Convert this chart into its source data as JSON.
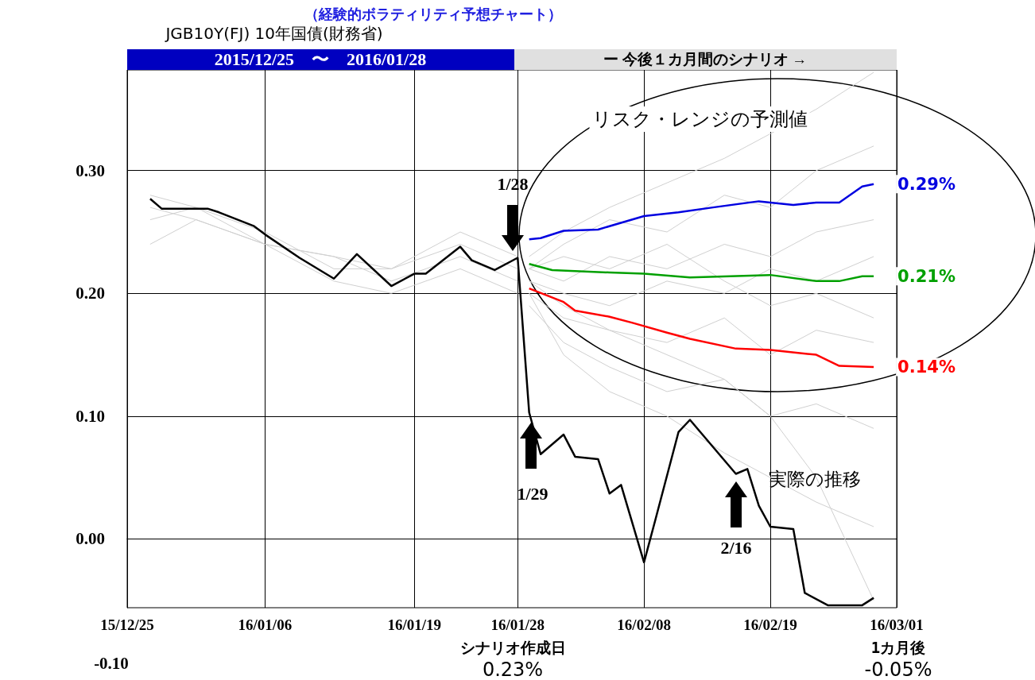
{
  "chart_data": {
    "type": "line",
    "title": "（経験的ボラティリティ予想チャート）",
    "subtitle": "JGB10Y(FJ) 10年国債(財務省)",
    "xlim": [
      "2015-12-25",
      "2016-03-01"
    ],
    "xticks": [
      {
        "value": "2015-12-25",
        "label": "15/12/25"
      },
      {
        "value": "2016-01-06",
        "label": "16/01/06"
      },
      {
        "value": "2016-01-19",
        "label": "16/01/19"
      },
      {
        "value": "2016-01-28",
        "label": "16/01/28"
      },
      {
        "value": "2016-02-08",
        "label": "16/02/08"
      },
      {
        "value": "2016-02-19",
        "label": "16/02/19"
      },
      {
        "value": "2016-03-01",
        "label": "16/03/01"
      }
    ],
    "ylim": [
      -0.056,
      0.382
    ],
    "yticks": [
      {
        "value": 0,
        "label": "0.00"
      },
      {
        "value": 0.1,
        "label": "0.10"
      },
      {
        "value": 0.2,
        "label": "0.20"
      },
      {
        "value": 0.3,
        "label": "0.30"
      }
    ],
    "grid": true,
    "marker": "none",
    "line_style": "solid",
    "series": [
      {
        "color": "#d0d0d0",
        "x": [
          "2015-12-27",
          "2015-12-31",
          "2016-01-06",
          "2016-01-12",
          "2016-01-17",
          "2016-01-23",
          "2016-01-28"
        ],
        "values": [
          0.26,
          0.27,
          0.25,
          0.22,
          0.22,
          0.24,
          0.22
        ]
      },
      {
        "color": "#d0d0d0",
        "x": [
          "2015-12-27",
          "2015-12-31",
          "2016-01-06",
          "2016-01-12",
          "2016-01-17",
          "2016-01-23",
          "2016-01-28"
        ],
        "values": [
          0.28,
          0.27,
          0.24,
          0.23,
          0.21,
          0.23,
          0.21
        ]
      },
      {
        "color": "#d0d0d0",
        "x": [
          "2015-12-27",
          "2015-12-31",
          "2016-01-06",
          "2016-01-12",
          "2016-01-17",
          "2016-01-23",
          "2016-01-28"
        ],
        "values": [
          0.24,
          0.26,
          0.24,
          0.21,
          0.2,
          0.22,
          0.2
        ]
      },
      {
        "color": "#d0d0d0",
        "x": [
          "2015-12-27",
          "2015-12-31",
          "2016-01-06",
          "2016-01-12",
          "2016-01-17",
          "2016-01-23",
          "2016-01-28"
        ],
        "values": [
          0.27,
          0.26,
          0.24,
          0.23,
          0.22,
          0.25,
          0.23
        ]
      },
      {
        "color": "#d0d0d0",
        "x": [
          "2016-01-29",
          "2016-02-01",
          "2016-02-05",
          "2016-02-10",
          "2016-02-15",
          "2016-02-19",
          "2016-02-23",
          "2016-02-28"
        ],
        "values": [
          0.23,
          0.25,
          0.27,
          0.29,
          0.31,
          0.33,
          0.35,
          0.38
        ]
      },
      {
        "color": "#d0d0d0",
        "x": [
          "2016-01-29",
          "2016-02-01",
          "2016-02-05",
          "2016-02-10",
          "2016-02-15",
          "2016-02-19",
          "2016-02-23",
          "2016-02-28"
        ],
        "values": [
          0.22,
          0.24,
          0.26,
          0.25,
          0.28,
          0.27,
          0.3,
          0.32
        ]
      },
      {
        "color": "#d0d0d0",
        "x": [
          "2016-01-29",
          "2016-02-01",
          "2016-02-05",
          "2016-02-10",
          "2016-02-15",
          "2016-02-19",
          "2016-02-23",
          "2016-02-28"
        ],
        "values": [
          0.22,
          0.21,
          0.23,
          0.22,
          0.24,
          0.23,
          0.25,
          0.26
        ]
      },
      {
        "color": "#d0d0d0",
        "x": [
          "2016-01-29",
          "2016-02-01",
          "2016-02-05",
          "2016-02-10",
          "2016-02-15",
          "2016-02-19",
          "2016-02-23",
          "2016-02-28"
        ],
        "values": [
          0.21,
          0.2,
          0.19,
          0.21,
          0.2,
          0.22,
          0.21,
          0.23
        ]
      },
      {
        "color": "#d0d0d0",
        "x": [
          "2016-01-29",
          "2016-02-01",
          "2016-02-05",
          "2016-02-10",
          "2016-02-15",
          "2016-02-19",
          "2016-02-23",
          "2016-02-28"
        ],
        "values": [
          0.2,
          0.18,
          0.17,
          0.16,
          0.18,
          0.15,
          0.17,
          0.16
        ]
      },
      {
        "color": "#d0d0d0",
        "x": [
          "2016-01-29",
          "2016-02-01",
          "2016-02-05",
          "2016-02-10",
          "2016-02-15",
          "2016-02-19",
          "2016-02-23",
          "2016-02-28"
        ],
        "values": [
          0.19,
          0.16,
          0.14,
          0.12,
          0.13,
          0.1,
          0.11,
          0.09
        ]
      },
      {
        "color": "#d0d0d0",
        "x": [
          "2016-01-29",
          "2016-02-01",
          "2016-02-05",
          "2016-02-10",
          "2016-02-15",
          "2016-02-19",
          "2016-02-23",
          "2016-02-28"
        ],
        "values": [
          0.2,
          0.15,
          0.12,
          0.1,
          0.07,
          0.05,
          0.03,
          0.01
        ]
      },
      {
        "color": "#d0d0d0",
        "x": [
          "2016-01-29",
          "2016-02-01",
          "2016-02-05",
          "2016-02-10",
          "2016-02-15",
          "2016-02-19",
          "2016-02-23",
          "2016-02-28"
        ],
        "values": [
          0.21,
          0.19,
          0.17,
          0.15,
          0.13,
          0.1,
          0.05,
          -0.05
        ]
      },
      {
        "color": "#d0d0d0",
        "x": [
          "2016-01-29",
          "2016-02-01",
          "2016-02-05",
          "2016-02-10",
          "2016-02-15",
          "2016-02-19",
          "2016-02-23",
          "2016-02-28"
        ],
        "values": [
          0.22,
          0.23,
          0.22,
          0.24,
          0.21,
          0.19,
          0.2,
          0.18
        ]
      },
      {
        "color": "#0000e0",
        "x": [
          "2016-01-29",
          "2016-01-30",
          "2016-02-01",
          "2016-02-04",
          "2016-02-08",
          "2016-02-11",
          "2016-02-14",
          "2016-02-18",
          "2016-02-21",
          "2016-02-23",
          "2016-02-25",
          "2016-02-27",
          "2016-02-28"
        ],
        "values": [
          0.244,
          0.245,
          0.251,
          0.252,
          0.263,
          0.266,
          0.27,
          0.275,
          0.272,
          0.274,
          0.274,
          0.287,
          0.289
        ],
        "value_labels": [
          null,
          null,
          null,
          null,
          null,
          null,
          null,
          null,
          null,
          null,
          null,
          null,
          "0.29%"
        ]
      },
      {
        "color": "#00a000",
        "x": [
          "2016-01-29",
          "2016-01-31",
          "2016-02-05",
          "2016-02-08",
          "2016-02-12",
          "2016-02-19",
          "2016-02-23",
          "2016-02-25",
          "2016-02-27",
          "2016-02-28"
        ],
        "values": [
          0.224,
          0.219,
          0.217,
          0.216,
          0.213,
          0.215,
          0.21,
          0.21,
          0.214,
          0.214
        ],
        "value_labels": [
          null,
          null,
          null,
          null,
          null,
          null,
          null,
          null,
          null,
          "0.21%"
        ]
      },
      {
        "color": "#ff0000",
        "x": [
          "2016-01-29",
          "2016-02-01",
          "2016-02-02",
          "2016-02-05",
          "2016-02-07",
          "2016-02-10",
          "2016-02-12",
          "2016-02-16",
          "2016-02-19",
          "2016-02-23",
          "2016-02-25",
          "2016-02-28"
        ],
        "values": [
          0.204,
          0.193,
          0.186,
          0.181,
          0.176,
          0.168,
          0.163,
          0.155,
          0.154,
          0.15,
          0.141,
          0.14
        ],
        "value_labels": [
          null,
          null,
          null,
          null,
          null,
          null,
          null,
          null,
          null,
          null,
          null,
          "0.14%"
        ]
      },
      {
        "color": "#000000",
        "x": [
          "2015-12-27",
          "2015-12-28",
          "2016-01-01",
          "2016-01-02",
          "2016-01-05",
          "2016-01-06",
          "2016-01-09",
          "2016-01-12",
          "2016-01-14",
          "2016-01-17",
          "2016-01-19",
          "2016-01-20",
          "2016-01-23",
          "2016-01-24",
          "2016-01-26",
          "2016-01-28",
          "2016-01-29",
          "2016-01-30",
          "2016-02-01",
          "2016-02-02",
          "2016-02-04",
          "2016-02-05",
          "2016-02-06",
          "2016-02-08",
          "2016-02-09",
          "2016-02-11",
          "2016-02-12",
          "2016-02-16",
          "2016-02-17",
          "2016-02-18",
          "2016-02-19",
          "2016-02-21",
          "2016-02-22",
          "2016-02-24",
          "2016-02-27",
          "2016-02-28"
        ],
        "values": [
          0.277,
          0.269,
          0.269,
          0.266,
          0.255,
          0.248,
          0.229,
          0.212,
          0.232,
          0.206,
          0.216,
          0.216,
          0.238,
          0.227,
          0.219,
          0.229,
          0.103,
          0.069,
          0.085,
          0.067,
          0.065,
          0.037,
          0.044,
          -0.019,
          0.016,
          0.087,
          0.097,
          0.053,
          0.057,
          0.027,
          0.01,
          0.008,
          -0.044,
          -0.054,
          -0.054,
          -0.048
        ]
      }
    ],
    "annotations": [
      "2015/12/25　〜　2016/01/28",
      "ー 今後１カ月間のシナリオ →",
      "1/28",
      "1/29",
      "2/16",
      "リスク・レンジの予測値",
      "実際の推移",
      "シナリオ作成日",
      "0.23%",
      "1カ月後",
      "-0.05%",
      "-0.10"
    ]
  }
}
